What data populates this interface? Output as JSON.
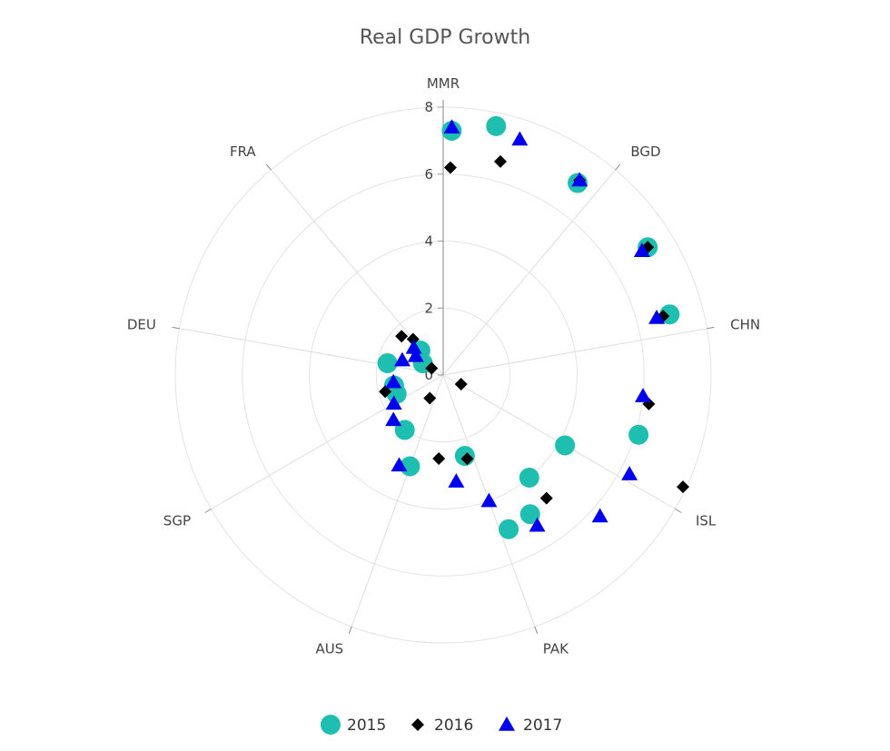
{
  "chart_data": {
    "type": "scatter",
    "coordinate_system": "polar",
    "title": "Real GDP Growth",
    "radial_axis": {
      "min": 0,
      "max": 8,
      "ticks": [
        0,
        2,
        4,
        6,
        8
      ]
    },
    "categories": [
      "MMR",
      "BGD",
      "CHN",
      "ISL",
      "PAK",
      "AUS",
      "SGP",
      "DEU",
      "FRA"
    ],
    "series": [
      {
        "name": "2015",
        "color": "#1ebfb0",
        "marker": "circle",
        "points": [
          {
            "x": 2.0,
            "y": 7.3
          },
          {
            "x": 12.0,
            "y": 7.6
          },
          {
            "x": 35.0,
            "y": 7.0
          },
          {
            "x": 58.0,
            "y": 7.2
          },
          {
            "x": 75.0,
            "y": 7.0
          },
          {
            "x": 107.0,
            "y": 6.1
          },
          {
            "x": 120.0,
            "y": 4.2
          },
          {
            "x": 140.0,
            "y": 4.0
          },
          {
            "x": 148.0,
            "y": 4.9
          },
          {
            "x": 157.0,
            "y": 5.0
          },
          {
            "x": 165.0,
            "y": 2.5
          },
          {
            "x": 200.0,
            "y": 2.9
          },
          {
            "x": 215.0,
            "y": 2.0
          },
          {
            "x": 248.0,
            "y": 1.5
          },
          {
            "x": 258.0,
            "y": 1.5
          },
          {
            "x": 282.0,
            "y": 1.7
          },
          {
            "x": 300.0,
            "y": 0.7
          },
          {
            "x": 317.0,
            "y": 1.0
          }
        ]
      },
      {
        "name": "2016",
        "color": "#000000",
        "marker": "diamond",
        "points": [
          {
            "x": 2.0,
            "y": 6.2
          },
          {
            "x": 15.0,
            "y": 6.6
          },
          {
            "x": 35.0,
            "y": 7.1
          },
          {
            "x": 58.0,
            "y": 7.2
          },
          {
            "x": 75.0,
            "y": 6.8
          },
          {
            "x": 98.0,
            "y": 6.2
          },
          {
            "x": 115.0,
            "y": 7.9
          },
          {
            "x": 117.0,
            "y": 0.6
          },
          {
            "x": 140.0,
            "y": 4.8
          },
          {
            "x": 164.0,
            "y": 2.6
          },
          {
            "x": 183.0,
            "y": 2.5
          },
          {
            "x": 210.0,
            "y": 0.8
          },
          {
            "x": 254.0,
            "y": 1.8
          },
          {
            "x": 300.0,
            "y": 0.4
          },
          {
            "x": 313.0,
            "y": 1.7
          },
          {
            "x": 320.0,
            "y": 1.4
          }
        ]
      },
      {
        "name": "2017",
        "color": "#0000ee",
        "marker": "triangle",
        "points": [
          {
            "x": 2.0,
            "y": 7.4
          },
          {
            "x": 18.0,
            "y": 7.4
          },
          {
            "x": 35.0,
            "y": 7.1
          },
          {
            "x": 58.0,
            "y": 7.0
          },
          {
            "x": 75.0,
            "y": 6.6
          },
          {
            "x": 96.0,
            "y": 6.0
          },
          {
            "x": 118.0,
            "y": 6.3
          },
          {
            "x": 132.0,
            "y": 6.3
          },
          {
            "x": 148.0,
            "y": 5.3
          },
          {
            "x": 160.0,
            "y": 4.0
          },
          {
            "x": 173.0,
            "y": 3.2
          },
          {
            "x": 206.0,
            "y": 3.0
          },
          {
            "x": 228.0,
            "y": 2.0
          },
          {
            "x": 240.0,
            "y": 1.7
          },
          {
            "x": 262.0,
            "y": 1.5
          },
          {
            "x": 290.0,
            "y": 1.3
          },
          {
            "x": 305.0,
            "y": 1.0
          },
          {
            "x": 313.0,
            "y": 1.2
          }
        ]
      }
    ],
    "grid": true,
    "legend": {
      "position": "bottom-center"
    }
  }
}
